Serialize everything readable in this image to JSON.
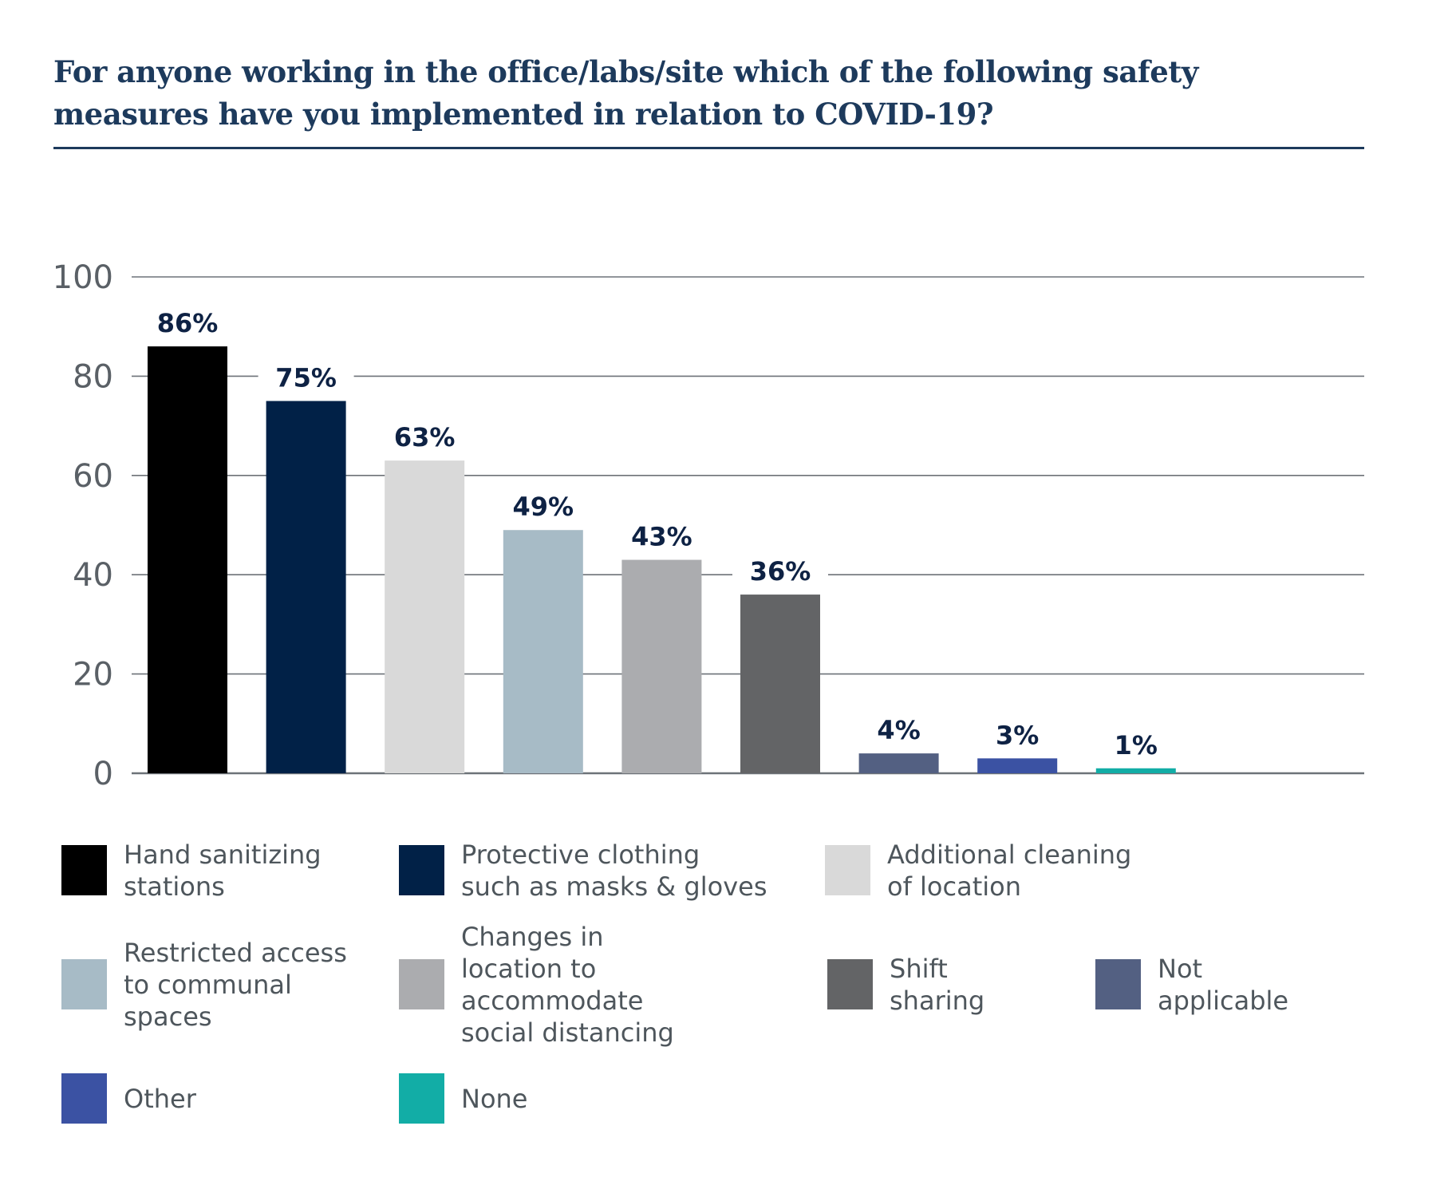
{
  "chart_data": {
    "type": "bar",
    "title": "For anyone working in the office/labs/site  which of the following safety measures have you implemented in relation to COVID-19?",
    "xlabel": "",
    "ylabel": "",
    "ylim": [
      0,
      100
    ],
    "yticks": [
      0,
      20,
      40,
      60,
      80,
      100
    ],
    "grid": true,
    "legend_position": "bottom",
    "categories": [
      "Hand sanitizing stations",
      "Protective clothing such as masks & gloves",
      "Additional cleaning of location",
      "Restricted access to communal spaces",
      "Changes in location to accommodate social distancing",
      "Shift sharing",
      "Not applicable",
      "Other",
      "None"
    ],
    "values": [
      86,
      75,
      63,
      49,
      43,
      36,
      4,
      3,
      1
    ],
    "value_labels": [
      "86%",
      "75%",
      "63%",
      "49%",
      "43%",
      "36%",
      "4%",
      "3%",
      "1%"
    ],
    "colors": [
      "#000000",
      "#012147",
      "#d9d9d9",
      "#a7bbc6",
      "#abacaf",
      "#636466",
      "#536082",
      "#3b52a3",
      "#12ada6"
    ]
  },
  "title": {
    "line1": "For anyone working in the office/labs/site  which of the following safety",
    "line2": "measures have you implemented in relation to COVID-19?"
  },
  "legend": [
    {
      "label": "Hand sanitizing\nstations",
      "color": "#000000"
    },
    {
      "label": "Protective clothing\nsuch as masks & gloves",
      "color": "#012147"
    },
    {
      "label": "Additional cleaning\nof location",
      "color": "#d9d9d9"
    },
    {
      "label": "Restricted access\nto communal\nspaces",
      "color": "#a7bbc6"
    },
    {
      "label": "Changes in\nlocation to\naccommodate\nsocial distancing",
      "color": "#abacaf"
    },
    {
      "label": "Shift\nsharing",
      "color": "#636466"
    },
    {
      "label": "Not\napplicable",
      "color": "#536082"
    },
    {
      "label": "Other",
      "color": "#3b52a3"
    },
    {
      "label": "None",
      "color": "#12ada6"
    }
  ],
  "colors": {
    "title": "#1d3a5c",
    "gridline": "#6d7278",
    "value_label": "#0e2244",
    "tick_label": "#5a6066",
    "legend_text": "#4e565c"
  }
}
